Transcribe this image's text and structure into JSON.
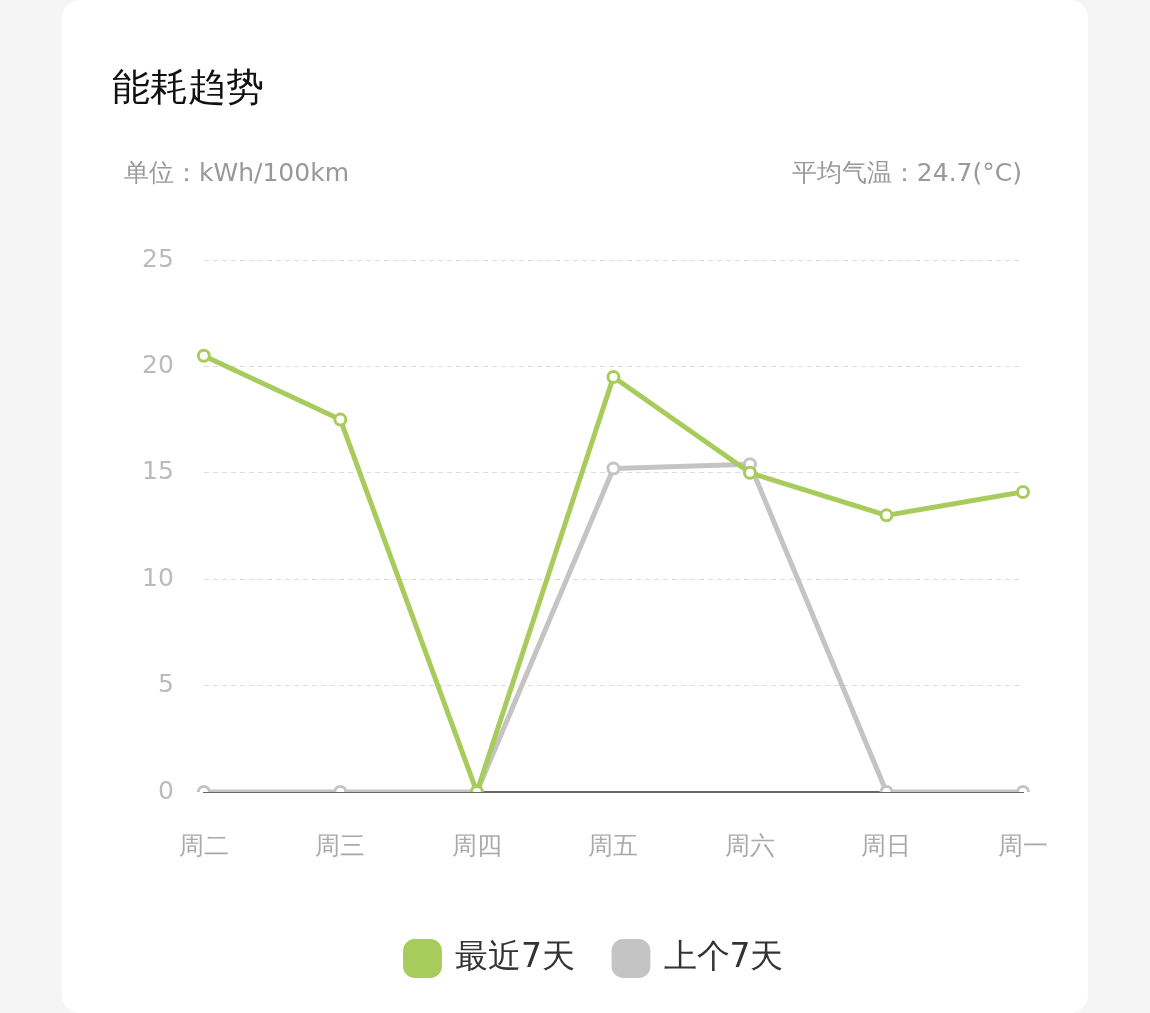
{
  "chart_data": {
    "type": "line",
    "title": "能耗趋势",
    "subtitle": "单位：kWh/100km",
    "annotations": [
      "平均气温：24.7(°C)"
    ],
    "categories": [
      "周二",
      "周三",
      "周四",
      "周五",
      "周六",
      "周日",
      "周一"
    ],
    "series": [
      {
        "name": "最近7天",
        "color": "#a8cc5c",
        "values": [
          20.5,
          17.5,
          0,
          19.5,
          15,
          13,
          14.1
        ]
      },
      {
        "name": "上个7天",
        "color": "#c4c4c4",
        "values": [
          0,
          0,
          0,
          15.2,
          15.4,
          0,
          0
        ]
      }
    ],
    "ylim": [
      0,
      25
    ],
    "yticks": [
      0,
      5,
      10,
      15,
      20,
      25
    ],
    "grid": "y",
    "legend": "bottom",
    "marker": "circle",
    "line_style": "solid"
  }
}
